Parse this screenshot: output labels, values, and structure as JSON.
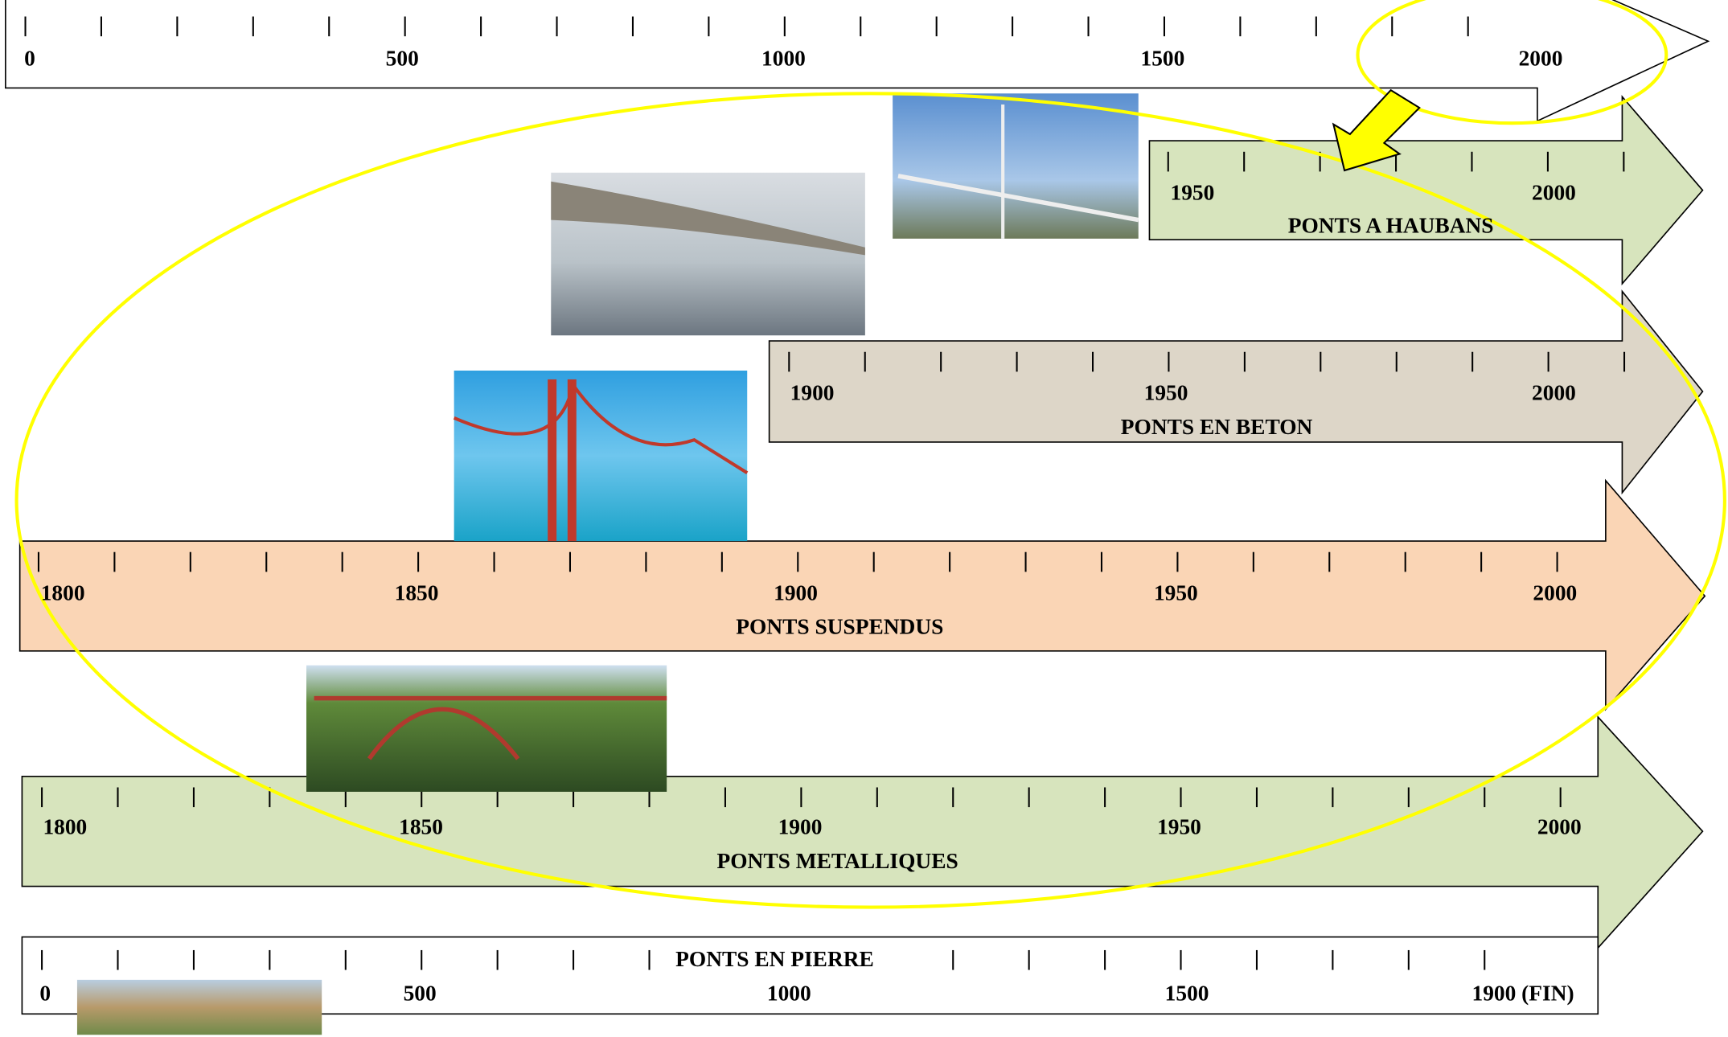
{
  "timelines": [
    {
      "labels": [
        "0",
        "500",
        "1000",
        "1500",
        "2000"
      ]
    },
    {
      "title": "PONTS A HAUBANS",
      "labels": [
        "1950",
        "2000"
      ]
    },
    {
      "title": "PONTS EN BETON",
      "labels": [
        "1900",
        "1950",
        "2000"
      ]
    },
    {
      "title": "PONTS SUSPENDUS",
      "labels": [
        "1800",
        "1850",
        "1900",
        "1950",
        "2000"
      ]
    },
    {
      "title": "PONTS METALLIQUES",
      "labels": [
        "1800",
        "1850",
        "1900",
        "1950",
        "2000"
      ]
    },
    {
      "title": "PONTS EN PIERRE",
      "labels": [
        "0",
        "500",
        "1000",
        "1500",
        "1900 (FIN)"
      ]
    }
  ]
}
